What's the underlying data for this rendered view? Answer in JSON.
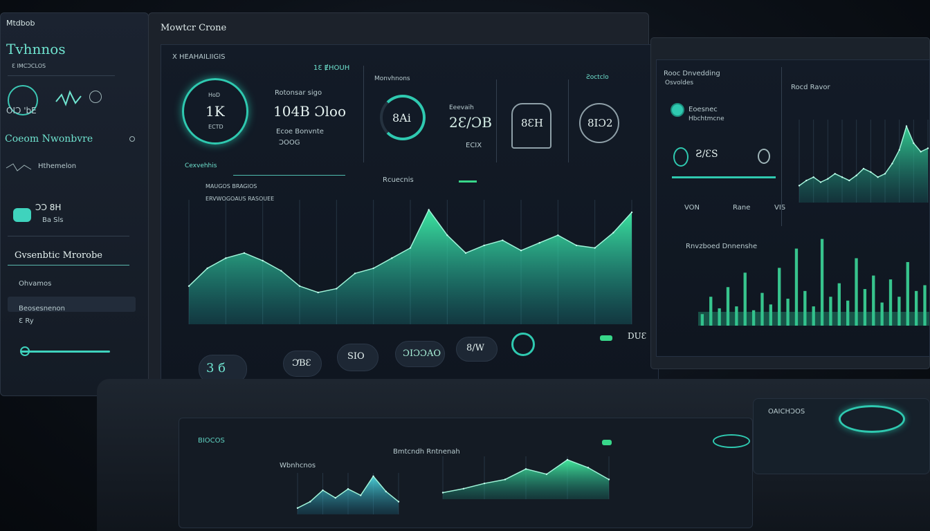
{
  "left_panel": {
    "tab": "Mtdbob",
    "title": "Tvhnnos",
    "sub": "Ɛ IMCƆCLOS",
    "gauge_value": "OIƆ 'bE",
    "section": "Coeom  Nwonbvre",
    "row1": "Hthemelon",
    "row2_value": "ƆƆ 8H",
    "row2_sub": "Ba Sls",
    "section2": "Gvsenbtic Mrorobe",
    "row3": "Ohvamos",
    "row4": "Beosesnenon",
    "row4_sub": "Ɛ Ry"
  },
  "main_monitor": {
    "title": "Mowtcr Crone",
    "subtitle": "X HEAHAILIIGIS",
    "gauge1": {
      "value": "1K",
      "top": "HoD",
      "bottom": "ECTD"
    },
    "stat1": {
      "label": "Rotonsar sigo",
      "value": "104B Ɔloo",
      "sub": "Ecoe Bonvnte",
      "sub2": "ƆOOG"
    },
    "top_right_label": "1Ɛ  ɆHOUH",
    "metric_labels": [
      "Monvhnons",
      "Ƨoctclo"
    ],
    "gauge2": {
      "value": "8Ai"
    },
    "stat2": {
      "label": "Eeevaih",
      "value": "2Ɛ/ƆB",
      "sub": "ECIX"
    },
    "gauge3": {
      "value": "8ƐH"
    },
    "gauge4": {
      "value": "8IƆ2"
    },
    "chart_title": "Cexvehhis",
    "chart_sub": "MAUGOS  BRAGIOS",
    "chart_header": "Rcuecnis",
    "chart_legend": "ERVWOGOAUS RASOUEE",
    "bottom_pills": [
      "3 б",
      "ƆƁƐ",
      "SIO",
      "ƆIƆƆAO",
      "8/W",
      "DUƐ"
    ]
  },
  "main_chart_data": {
    "type": "area",
    "series": [
      {
        "values": [
          30,
          44,
          52,
          56,
          50,
          42,
          30,
          25,
          28,
          40,
          44,
          52,
          60,
          90,
          70,
          56,
          62,
          66,
          58,
          64,
          70,
          62,
          60,
          72,
          88
        ]
      }
    ]
  },
  "right_monitor": {
    "title": "Rooc Dnvedding",
    "sub": "Osvoldes",
    "item1": "Eoesnec",
    "item1_sub": "Hbchtmcne",
    "stat": "Ƨ/ƐS",
    "footer": [
      "VON",
      "Rane",
      "VIS"
    ],
    "chart_title": "Rocd Ravor",
    "chart2_title": "Rnvzboed Dnnenshe"
  },
  "right_chart_data": {
    "type": "area",
    "series": [
      {
        "values": [
          20,
          26,
          30,
          24,
          28,
          34,
          30,
          26,
          32,
          40,
          36,
          30,
          34,
          46,
          62,
          90,
          70,
          60,
          64
        ]
      }
    ]
  },
  "right_bar_data": {
    "type": "bar",
    "values": [
      12,
      30,
      18,
      40,
      20,
      55,
      16,
      34,
      22,
      60,
      28,
      80,
      36,
      20,
      90,
      30,
      44,
      26,
      70,
      38,
      52,
      24,
      48,
      30,
      66,
      36,
      42
    ]
  },
  "desk": {
    "label1": "BIOCOS",
    "label2": "Wbnhcnos",
    "label3": "Bmtcndh Rntnenah",
    "label4": "OAICHƆOS"
  },
  "desk_chart1_data": {
    "type": "area",
    "series": [
      {
        "values": [
          10,
          20,
          38,
          26,
          40,
          30,
          60,
          36,
          20
        ]
      }
    ]
  },
  "desk_chart2_data": {
    "type": "area",
    "series": [
      {
        "values": [
          10,
          16,
          24,
          30,
          46,
          38,
          60,
          48,
          30
        ]
      }
    ]
  }
}
